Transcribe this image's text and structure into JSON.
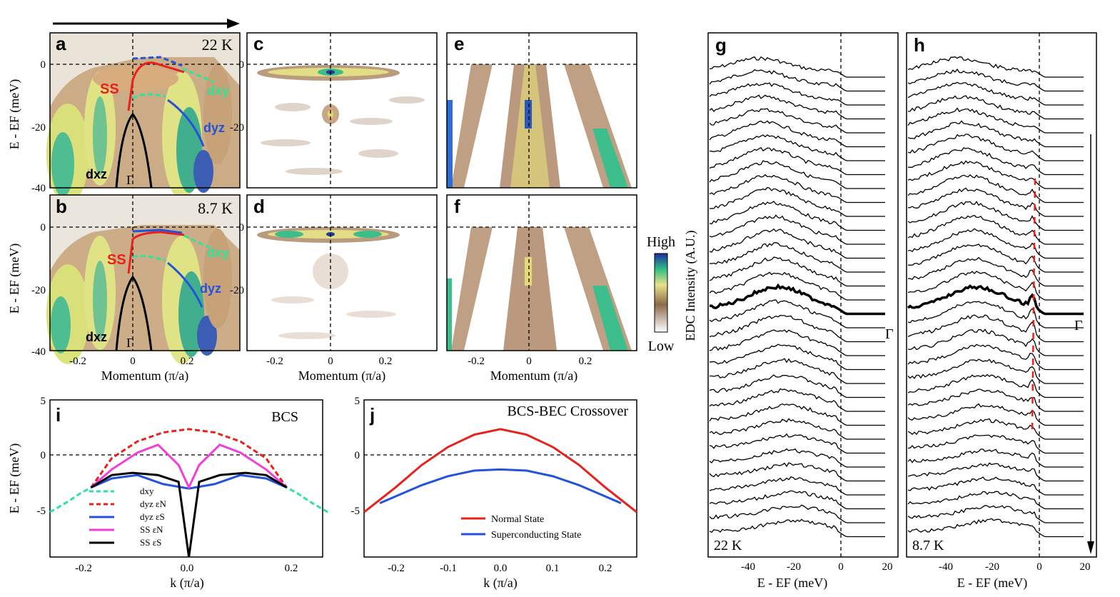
{
  "figure": {
    "panels": {
      "a": {
        "label": "a",
        "temp": "22 K"
      },
      "b": {
        "label": "b",
        "temp": "8.7 K"
      },
      "c": {
        "label": "c"
      },
      "d": {
        "label": "d"
      },
      "e": {
        "label": "e"
      },
      "f": {
        "label": "f"
      },
      "g": {
        "label": "g",
        "temp": "22 K"
      },
      "h": {
        "label": "h",
        "temp": "8.7 K"
      },
      "i": {
        "label": "i",
        "title": "BCS"
      },
      "j": {
        "label": "j",
        "title": "BCS-BEC Crossover"
      }
    },
    "band_labels": {
      "ss": "SS",
      "dxy": "dxy",
      "dyz": "dyz",
      "dxz": "dxz",
      "gamma": "Γ"
    },
    "colorbar": {
      "high": "High",
      "low": "Low"
    },
    "axes": {
      "energy_ylabel": "E - EF (meV)",
      "momentum_xlabel": "Momentum (π/a)",
      "k_xlabel": "k (π/a)",
      "edc_xlabel": "E - EF (meV)",
      "edc_ylabel": "EDC Intensity (A.U.)"
    },
    "legend_i": [
      "dxy",
      "dyz εN",
      "dyz εS",
      "SS εN",
      "SS εS"
    ],
    "legend_j": [
      "Normal State",
      "Superconducting State"
    ]
  },
  "chart_data": [
    {
      "type": "heatmap",
      "panel": "a",
      "title": "22 K",
      "xlabel": "Momentum (π/a)",
      "ylabel": "E - EF (meV)",
      "xlim": [
        -0.3,
        0.37
      ],
      "ylim": [
        -40,
        10
      ],
      "xticks": [
        -0.2,
        0,
        0.2
      ],
      "yticks": [
        0,
        -20,
        -40
      ]
    },
    {
      "type": "heatmap",
      "panel": "b",
      "title": "8.7 K",
      "xlabel": "Momentum (π/a)",
      "ylabel": "E - EF (meV)",
      "xlim": [
        -0.3,
        0.37
      ],
      "ylim": [
        -40,
        10
      ],
      "xticks": [
        -0.2,
        0,
        0.2
      ],
      "yticks": [
        0,
        -20,
        -40
      ]
    },
    {
      "type": "heatmap",
      "panel": "c",
      "xlim": [
        -0.3,
        0.37
      ],
      "ylim": [
        -40,
        10
      ],
      "xticks": [],
      "yticks": [
        0,
        -20
      ]
    },
    {
      "type": "heatmap",
      "panel": "d",
      "xlabel": "Momentum (π/a)",
      "xlim": [
        -0.3,
        0.37
      ],
      "ylim": [
        -40,
        10
      ],
      "xticks": [
        -0.2,
        0,
        0.2
      ],
      "yticks": [
        0,
        -20
      ]
    },
    {
      "type": "heatmap",
      "panel": "e",
      "xlim": [
        -0.3,
        0.37
      ],
      "ylim": [
        -40,
        10
      ]
    },
    {
      "type": "heatmap",
      "panel": "f",
      "xlabel": "Momentum (π/a)",
      "xlim": [
        -0.3,
        0.37
      ],
      "ylim": [
        -40,
        10
      ],
      "xticks": [
        -0.2,
        0,
        0.2
      ]
    },
    {
      "type": "line",
      "panel": "g",
      "title": "22 K",
      "xlabel": "E - EF (meV)",
      "ylabel": "EDC Intensity (A.U.)",
      "xlim": [
        -58,
        25
      ],
      "xticks": [
        -40,
        -20,
        0,
        20
      ],
      "n_curves": 34
    },
    {
      "type": "line",
      "panel": "h",
      "title": "8.7 K",
      "xlabel": "E - EF (meV)",
      "ylabel": "EDC Intensity (A.U.)",
      "xlim": [
        -58,
        25
      ],
      "xticks": [
        -40,
        -20,
        0,
        20
      ],
      "n_curves": 34
    },
    {
      "type": "line",
      "panel": "i",
      "title": "BCS",
      "xlabel": "k (π/a)",
      "ylabel": "E - EF (meV)",
      "xlim": [
        -0.27,
        0.26
      ],
      "ylim": [
        -9,
        5
      ],
      "xticks": [
        -0.2,
        0.0,
        0.2
      ],
      "yticks": [
        5,
        0,
        -5
      ],
      "series": [
        {
          "name": "dxy",
          "x": [
            -0.27,
            -0.24,
            -0.21,
            -0.19
          ],
          "y": [
            -5.0,
            -4.2,
            -3.3,
            -2.8
          ]
        },
        {
          "name": "dyz εN",
          "x": [
            -0.19,
            -0.15,
            -0.1,
            -0.05,
            0.0,
            0.05,
            0.1,
            0.15,
            0.19
          ],
          "y": [
            -2.8,
            -0.2,
            1.3,
            2.1,
            2.4,
            2.1,
            1.3,
            -0.2,
            -2.8
          ]
        },
        {
          "name": "dyz εS",
          "x": [
            -0.19,
            -0.15,
            -0.1,
            -0.05,
            0.0,
            0.05,
            0.1,
            0.15,
            0.19
          ],
          "y": [
            -2.8,
            -2.0,
            -1.7,
            -2.5,
            -2.9,
            -2.5,
            -1.7,
            -2.0,
            -2.8
          ]
        },
        {
          "name": "SS εN",
          "x": [
            -0.19,
            -0.15,
            -0.1,
            -0.06,
            -0.02,
            0.0,
            0.02,
            0.06,
            0.1,
            0.15,
            0.19
          ],
          "y": [
            -2.8,
            -1.2,
            0.3,
            1.0,
            -0.8,
            -2.8,
            -0.8,
            1.0,
            0.3,
            -1.2,
            -2.8
          ]
        },
        {
          "name": "SS εS",
          "x": [
            -0.19,
            -0.15,
            -0.11,
            -0.06,
            -0.02,
            0.0,
            0.02,
            0.06,
            0.11,
            0.15,
            0.19
          ],
          "y": [
            -2.8,
            -1.7,
            -1.5,
            -1.7,
            -2.3,
            -9,
            -2.3,
            -1.7,
            -1.5,
            -1.7,
            -2.8
          ]
        }
      ]
    },
    {
      "type": "line",
      "panel": "j",
      "title": "BCS-BEC Crossover",
      "xlabel": "k (π/a)",
      "ylabel": "",
      "xlim": [
        -0.26,
        0.26
      ],
      "ylim": [
        -9,
        5
      ],
      "xticks": [
        -0.2,
        -0.1,
        0.0,
        0.1,
        0.2
      ],
      "yticks": [
        5,
        0,
        -5
      ],
      "series": [
        {
          "name": "Normal State",
          "x": [
            -0.26,
            -0.2,
            -0.15,
            -0.1,
            -0.05,
            0.0,
            0.05,
            0.1,
            0.15,
            0.2,
            0.26
          ],
          "y": [
            -5.0,
            -2.8,
            -0.8,
            0.8,
            1.9,
            2.4,
            1.9,
            0.8,
            -0.8,
            -2.8,
            -5.0
          ]
        },
        {
          "name": "Superconducting State",
          "x": [
            -0.23,
            -0.2,
            -0.15,
            -0.1,
            -0.05,
            0.0,
            0.05,
            0.1,
            0.15,
            0.2,
            0.23
          ],
          "y": [
            -4.2,
            -3.6,
            -2.6,
            -1.8,
            -1.3,
            -1.2,
            -1.3,
            -1.8,
            -2.6,
            -3.6,
            -4.2
          ]
        }
      ]
    }
  ]
}
